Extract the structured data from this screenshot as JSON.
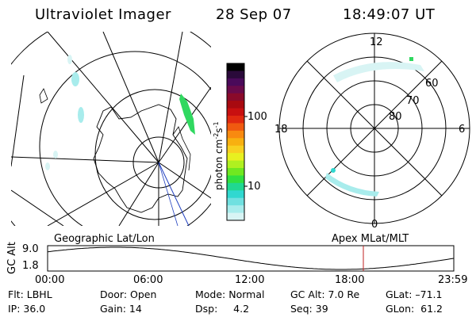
{
  "header": {
    "instrument": "Ultraviolet Imager",
    "date": "28 Sep 07",
    "time": "18:49:07 UT"
  },
  "colorbar": {
    "label": "photon cm",
    "label_sup1": "-2",
    "label_mid": "s",
    "label_sup2": "-1",
    "ticks": [
      "100",
      "10"
    ],
    "colors": [
      "#000000",
      "#2a0a3a",
      "#4a0a5a",
      "#6a0a4a",
      "#8a0a2a",
      "#a80a10",
      "#c81010",
      "#e02a10",
      "#f05a10",
      "#f88a10",
      "#f8b010",
      "#f8d020",
      "#e8f020",
      "#b0f020",
      "#70e820",
      "#30e040",
      "#20d890",
      "#30d8d0",
      "#70e0e0",
      "#a8ecec",
      "#d8f4f4"
    ]
  },
  "polar_plot": {
    "mlt_labels": [
      "12",
      "18",
      "6",
      "0"
    ],
    "lat_labels": [
      "60",
      "70",
      "80"
    ]
  },
  "geo_caption": "Geographic Lat/Lon",
  "apex_caption": "Apex MLat/MLT",
  "altitude_plot": {
    "axis_label": "GC Alt",
    "y_ticks": [
      "9.0",
      "1.8"
    ],
    "x_ticks": [
      "00:00",
      "06:00",
      "12:00",
      "18:00",
      "23:59"
    ],
    "marker_color": "#c02020"
  },
  "info": {
    "filter": "Flt: LBHL",
    "ip": "IP: 36.0",
    "door": "Door: Open",
    "gain": "Gain: 14",
    "mode": "Mode: Normal",
    "dsp": "Dsp:     4.2",
    "gc_alt": "GC Alt: 7.0 Re",
    "seq": "Seq: 39",
    "glat": "GLat: –71.1",
    "glon": "GLon:  61.2"
  }
}
